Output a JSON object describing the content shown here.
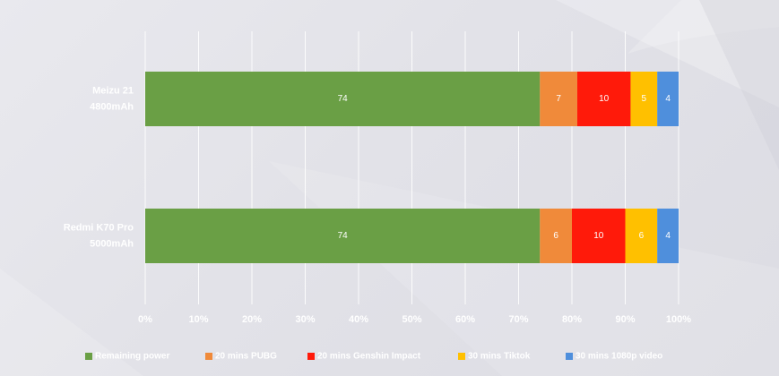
{
  "chart_data": {
    "type": "bar",
    "orientation": "horizontal",
    "stacked": true,
    "categories": [
      [
        "Meizu 21",
        "4800mAh"
      ],
      [
        "Redmi K70 Pro",
        "5000mAh"
      ]
    ],
    "series": [
      {
        "name": "Remaining power",
        "color": "#6a9f45",
        "values": [
          74,
          74
        ]
      },
      {
        "name": "20 mins PUBG",
        "color": "#f08a3a",
        "values": [
          7,
          6
        ]
      },
      {
        "name": "20 mins Genshin Impact",
        "color": "#ff1a0a",
        "values": [
          10,
          10
        ]
      },
      {
        "name": "30 mins Tiktok",
        "color": "#ffc000",
        "values": [
          5,
          6
        ]
      },
      {
        "name": "30 mins 1080p video",
        "color": "#4f8fdc",
        "values": [
          4,
          4
        ]
      }
    ],
    "xticks": [
      "0%",
      "10%",
      "20%",
      "30%",
      "40%",
      "50%",
      "60%",
      "70%",
      "80%",
      "90%",
      "100%"
    ],
    "xlim": [
      0,
      100
    ],
    "grid": true,
    "legend_position": "bottom"
  }
}
